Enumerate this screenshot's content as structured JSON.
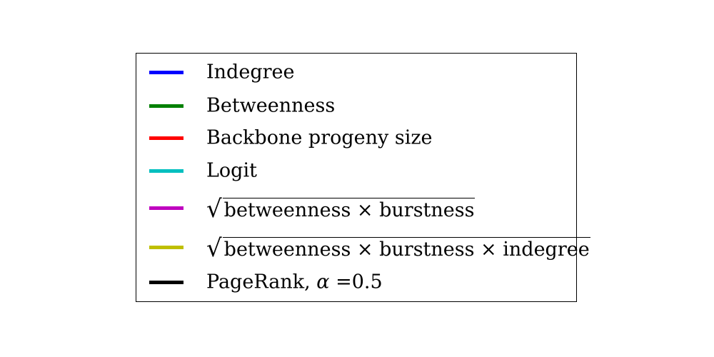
{
  "chart_data": {
    "type": "line",
    "legend": [
      {
        "label": "Indegree",
        "color": "#0000ff"
      },
      {
        "label": "Betweenness",
        "color": "#008000"
      },
      {
        "label": "Backbone progeny size",
        "color": "#ff0000"
      },
      {
        "label": "Logit",
        "color": "#00bfbf"
      },
      {
        "label": "betweenness × burstness",
        "color": "#bf00bf",
        "math": "sqrt"
      },
      {
        "label": "betweenness × burstness × indegree",
        "color": "#bfbf00",
        "math": "sqrt"
      },
      {
        "label_prefix": "PageRank, ",
        "label_symbol": "α",
        "label_suffix": " =0.5",
        "color": "#000000"
      }
    ]
  }
}
